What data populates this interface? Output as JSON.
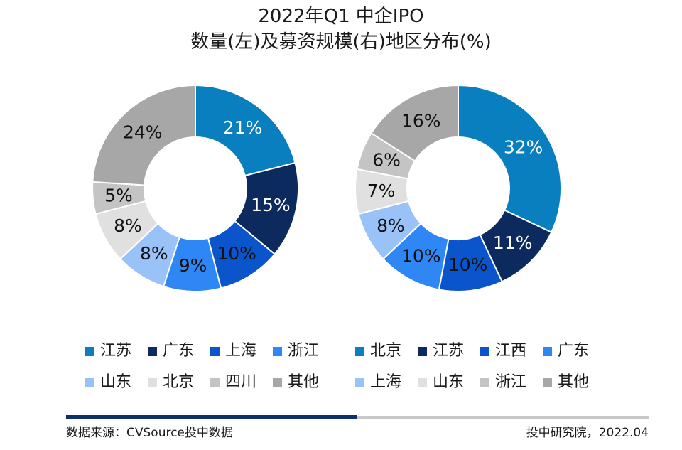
{
  "title_line1": "2022年Q1 中企IPO",
  "title_line2": "数量(左)及募资规模(右)地区分布(%)",
  "footer": {
    "source": "数据来源：CVSource投中数据",
    "brand": "投中研究院，2022.04"
  },
  "chart_data": [
    {
      "type": "donut",
      "categories": [
        "江苏",
        "广东",
        "上海",
        "浙江",
        "山东",
        "北京",
        "四川",
        "其他"
      ],
      "values": [
        21,
        15,
        10,
        9,
        8,
        8,
        5,
        24
      ],
      "labels": [
        "21%",
        "15%",
        "10%",
        "9%",
        "8%",
        "8%",
        "5%",
        "24%"
      ],
      "colors": [
        "#0a7fc0",
        "#0d2a5e",
        "#0b55cc",
        "#2f86f5",
        "#98c2f8",
        "#e0e0e0",
        "#c4c4c4",
        "#a7a7a7"
      ],
      "light_text": [
        true,
        true,
        false,
        false,
        false,
        false,
        false,
        false
      ],
      "unit": "%"
    },
    {
      "type": "donut",
      "categories": [
        "北京",
        "江苏",
        "江西",
        "广东",
        "上海",
        "山东",
        "浙江",
        "其他"
      ],
      "values": [
        32,
        11,
        10,
        10,
        8,
        7,
        6,
        16
      ],
      "labels": [
        "32%",
        "11%",
        "10%",
        "10%",
        "8%",
        "7%",
        "6%",
        "16%"
      ],
      "colors": [
        "#0a7fc0",
        "#0d2a5e",
        "#0b55cc",
        "#2f86f5",
        "#98c2f8",
        "#e0e0e0",
        "#c4c4c4",
        "#a7a7a7"
      ],
      "light_text": [
        true,
        true,
        false,
        false,
        false,
        false,
        false,
        false
      ],
      "unit": "%"
    }
  ]
}
